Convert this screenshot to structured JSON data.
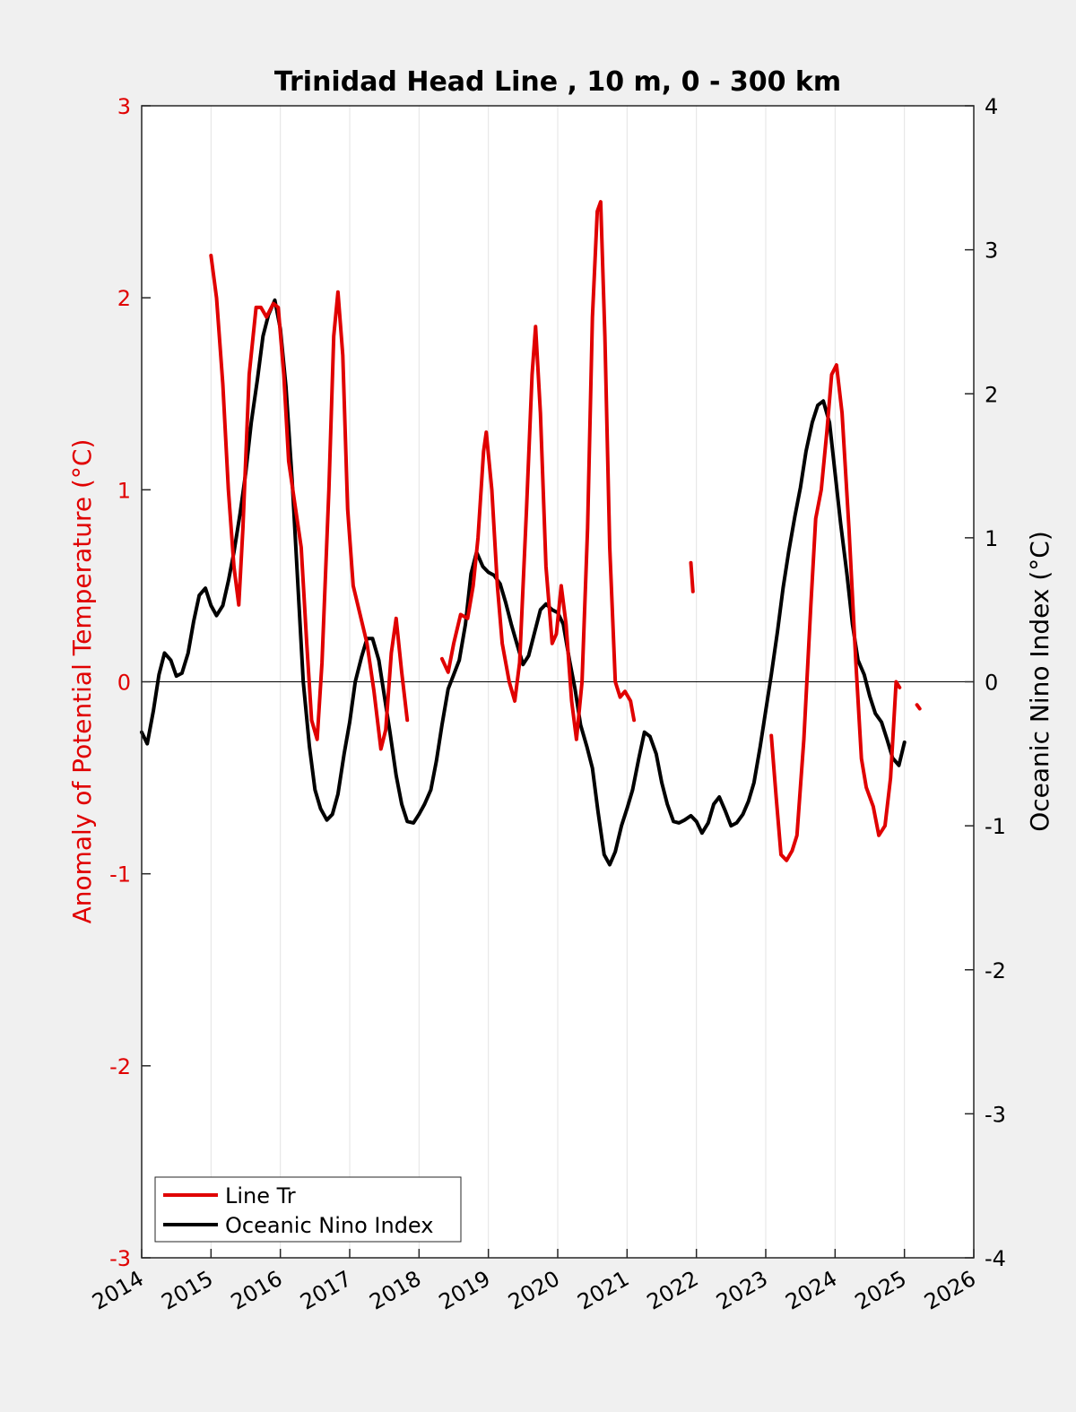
{
  "chart_data": {
    "type": "line",
    "title": "Trinidad Head Line , 10 m, 0 - 300 km",
    "xlabel": "",
    "ylabel_left": "Anomaly of Potential Temperature (°C)",
    "ylabel_right": "Oceanic Nino Index (°C)",
    "xlim": [
      2014,
      2026
    ],
    "ylim_left": [
      -3,
      3
    ],
    "ylim_right": [
      -4,
      4
    ],
    "x_ticks": [
      "2014",
      "2015",
      "2016",
      "2017",
      "2018",
      "2019",
      "2020",
      "2021",
      "2022",
      "2023",
      "2024",
      "2025",
      "2026"
    ],
    "y_ticks_left": [
      "3",
      "2",
      "1",
      "0",
      "-1",
      "-2",
      "-3"
    ],
    "y_ticks_right": [
      "4",
      "3",
      "2",
      "1",
      "0",
      "-1",
      "-2",
      "-3",
      "-4"
    ],
    "grid": "vertical",
    "zero_line": true,
    "legend_position": "bottom-left",
    "colors": {
      "line_tr": "#e00000",
      "oni": "#000000",
      "left_axis": "#e00000"
    },
    "series": [
      {
        "name": "Line Tr",
        "axis": "left",
        "segments": [
          [
            [
              2015.0,
              2.22
            ],
            [
              2015.08,
              2.0
            ],
            [
              2015.17,
              1.55
            ],
            [
              2015.25,
              1.0
            ],
            [
              2015.33,
              0.6
            ],
            [
              2015.4,
              0.4
            ],
            [
              2015.46,
              0.8
            ],
            [
              2015.55,
              1.6
            ],
            [
              2015.65,
              1.95
            ],
            [
              2015.72,
              1.95
            ],
            [
              2015.8,
              1.9
            ],
            [
              2015.9,
              1.97
            ],
            [
              2015.97,
              1.95
            ],
            [
              2016.05,
              1.6
            ],
            [
              2016.12,
              1.15
            ],
            [
              2016.2,
              0.95
            ],
            [
              2016.3,
              0.7
            ],
            [
              2016.38,
              0.2
            ],
            [
              2016.45,
              -0.2
            ],
            [
              2016.53,
              -0.3
            ],
            [
              2016.6,
              0.1
            ],
            [
              2016.7,
              1.0
            ],
            [
              2016.77,
              1.8
            ],
            [
              2016.83,
              2.03
            ],
            [
              2016.9,
              1.7
            ],
            [
              2016.97,
              0.9
            ],
            [
              2017.05,
              0.5
            ],
            [
              2017.15,
              0.35
            ],
            [
              2017.25,
              0.2
            ],
            [
              2017.35,
              -0.05
            ],
            [
              2017.45,
              -0.35
            ],
            [
              2017.52,
              -0.25
            ],
            [
              2017.6,
              0.15
            ],
            [
              2017.67,
              0.33
            ],
            [
              2017.75,
              0.05
            ],
            [
              2017.83,
              -0.2
            ]
          ],
          [
            [
              2018.33,
              0.12
            ],
            [
              2018.42,
              0.05
            ],
            [
              2018.5,
              0.2
            ],
            [
              2018.6,
              0.35
            ],
            [
              2018.7,
              0.33
            ],
            [
              2018.78,
              0.5
            ],
            [
              2018.85,
              0.75
            ],
            [
              2018.93,
              1.2
            ],
            [
              2018.97,
              1.3
            ],
            [
              2019.05,
              1.0
            ],
            [
              2019.13,
              0.5
            ],
            [
              2019.2,
              0.2
            ],
            [
              2019.3,
              0.0
            ],
            [
              2019.38,
              -0.1
            ],
            [
              2019.45,
              0.1
            ],
            [
              2019.55,
              0.9
            ],
            [
              2019.63,
              1.6
            ],
            [
              2019.68,
              1.85
            ],
            [
              2019.75,
              1.4
            ],
            [
              2019.83,
              0.6
            ],
            [
              2019.92,
              0.2
            ],
            [
              2019.98,
              0.25
            ],
            [
              2020.05,
              0.5
            ],
            [
              2020.12,
              0.3
            ],
            [
              2020.2,
              -0.1
            ],
            [
              2020.27,
              -0.3
            ],
            [
              2020.35,
              0.0
            ],
            [
              2020.43,
              0.8
            ],
            [
              2020.5,
              1.9
            ],
            [
              2020.57,
              2.45
            ],
            [
              2020.62,
              2.5
            ],
            [
              2020.68,
              1.8
            ],
            [
              2020.75,
              0.7
            ],
            [
              2020.83,
              0.0
            ],
            [
              2020.9,
              -0.08
            ],
            [
              2020.97,
              -0.05
            ],
            [
              2021.05,
              -0.1
            ],
            [
              2021.1,
              -0.2
            ]
          ],
          [
            [
              2021.92,
              0.62
            ],
            [
              2021.95,
              0.47
            ]
          ],
          [
            [
              2023.08,
              -0.28
            ],
            [
              2023.15,
              -0.6
            ],
            [
              2023.22,
              -0.9
            ],
            [
              2023.3,
              -0.93
            ],
            [
              2023.38,
              -0.88
            ],
            [
              2023.45,
              -0.8
            ],
            [
              2023.55,
              -0.3
            ],
            [
              2023.65,
              0.4
            ],
            [
              2023.72,
              0.85
            ],
            [
              2023.8,
              1.0
            ],
            [
              2023.88,
              1.3
            ],
            [
              2023.95,
              1.6
            ],
            [
              2024.02,
              1.65
            ],
            [
              2024.1,
              1.4
            ],
            [
              2024.2,
              0.8
            ],
            [
              2024.3,
              0.1
            ],
            [
              2024.38,
              -0.4
            ],
            [
              2024.45,
              -0.55
            ],
            [
              2024.55,
              -0.65
            ],
            [
              2024.63,
              -0.8
            ],
            [
              2024.72,
              -0.75
            ],
            [
              2024.8,
              -0.5
            ],
            [
              2024.88,
              0.0
            ],
            [
              2024.93,
              -0.03
            ]
          ],
          [
            [
              2025.18,
              -0.12
            ],
            [
              2025.22,
              -0.14
            ]
          ]
        ]
      },
      {
        "name": "Oceanic Nino Index",
        "axis": "right",
        "points": [
          [
            2014.0,
            -0.35
          ],
          [
            2014.08,
            -0.43
          ],
          [
            2014.17,
            -0.2
          ],
          [
            2014.25,
            0.05
          ],
          [
            2014.33,
            0.2
          ],
          [
            2014.42,
            0.15
          ],
          [
            2014.5,
            0.04
          ],
          [
            2014.58,
            0.06
          ],
          [
            2014.67,
            0.2
          ],
          [
            2014.75,
            0.42
          ],
          [
            2014.83,
            0.6
          ],
          [
            2014.92,
            0.65
          ],
          [
            2015.0,
            0.53
          ],
          [
            2015.08,
            0.46
          ],
          [
            2015.17,
            0.53
          ],
          [
            2015.25,
            0.7
          ],
          [
            2015.33,
            0.9
          ],
          [
            2015.42,
            1.17
          ],
          [
            2015.5,
            1.45
          ],
          [
            2015.58,
            1.8
          ],
          [
            2015.67,
            2.1
          ],
          [
            2015.75,
            2.4
          ],
          [
            2015.83,
            2.55
          ],
          [
            2015.92,
            2.65
          ],
          [
            2016.0,
            2.45
          ],
          [
            2016.08,
            2.05
          ],
          [
            2016.17,
            1.4
          ],
          [
            2016.25,
            0.7
          ],
          [
            2016.33,
            0.0
          ],
          [
            2016.42,
            -0.45
          ],
          [
            2016.5,
            -0.75
          ],
          [
            2016.58,
            -0.88
          ],
          [
            2016.67,
            -0.96
          ],
          [
            2016.75,
            -0.92
          ],
          [
            2016.83,
            -0.78
          ],
          [
            2016.92,
            -0.5
          ],
          [
            2017.0,
            -0.28
          ],
          [
            2017.08,
            0.0
          ],
          [
            2017.17,
            0.17
          ],
          [
            2017.25,
            0.3
          ],
          [
            2017.33,
            0.3
          ],
          [
            2017.42,
            0.15
          ],
          [
            2017.5,
            -0.1
          ],
          [
            2017.58,
            -0.35
          ],
          [
            2017.67,
            -0.65
          ],
          [
            2017.75,
            -0.85
          ],
          [
            2017.83,
            -0.97
          ],
          [
            2017.92,
            -0.98
          ],
          [
            2018.0,
            -0.92
          ],
          [
            2018.08,
            -0.85
          ],
          [
            2018.17,
            -0.75
          ],
          [
            2018.25,
            -0.55
          ],
          [
            2018.33,
            -0.3
          ],
          [
            2018.42,
            -0.05
          ],
          [
            2018.5,
            0.05
          ],
          [
            2018.58,
            0.15
          ],
          [
            2018.67,
            0.4
          ],
          [
            2018.75,
            0.75
          ],
          [
            2018.83,
            0.9
          ],
          [
            2018.92,
            0.8
          ],
          [
            2019.0,
            0.76
          ],
          [
            2019.08,
            0.74
          ],
          [
            2019.17,
            0.68
          ],
          [
            2019.25,
            0.55
          ],
          [
            2019.33,
            0.4
          ],
          [
            2019.42,
            0.25
          ],
          [
            2019.5,
            0.12
          ],
          [
            2019.58,
            0.18
          ],
          [
            2019.67,
            0.35
          ],
          [
            2019.75,
            0.5
          ],
          [
            2019.83,
            0.54
          ],
          [
            2019.92,
            0.5
          ],
          [
            2020.0,
            0.48
          ],
          [
            2020.08,
            0.4
          ],
          [
            2020.17,
            0.15
          ],
          [
            2020.25,
            -0.05
          ],
          [
            2020.33,
            -0.3
          ],
          [
            2020.42,
            -0.45
          ],
          [
            2020.5,
            -0.6
          ],
          [
            2020.58,
            -0.9
          ],
          [
            2020.67,
            -1.2
          ],
          [
            2020.75,
            -1.27
          ],
          [
            2020.83,
            -1.18
          ],
          [
            2020.92,
            -1.0
          ],
          [
            2021.0,
            -0.88
          ],
          [
            2021.08,
            -0.75
          ],
          [
            2021.17,
            -0.53
          ],
          [
            2021.25,
            -0.35
          ],
          [
            2021.33,
            -0.38
          ],
          [
            2021.42,
            -0.5
          ],
          [
            2021.5,
            -0.7
          ],
          [
            2021.58,
            -0.85
          ],
          [
            2021.67,
            -0.97
          ],
          [
            2021.75,
            -0.98
          ],
          [
            2021.83,
            -0.96
          ],
          [
            2021.92,
            -0.93
          ],
          [
            2022.0,
            -0.97
          ],
          [
            2022.08,
            -1.05
          ],
          [
            2022.17,
            -0.98
          ],
          [
            2022.25,
            -0.85
          ],
          [
            2022.33,
            -0.8
          ],
          [
            2022.42,
            -0.9
          ],
          [
            2022.5,
            -1.0
          ],
          [
            2022.58,
            -0.98
          ],
          [
            2022.67,
            -0.92
          ],
          [
            2022.75,
            -0.83
          ],
          [
            2022.83,
            -0.7
          ],
          [
            2022.92,
            -0.45
          ],
          [
            2023.0,
            -0.2
          ],
          [
            2023.08,
            0.05
          ],
          [
            2023.17,
            0.35
          ],
          [
            2023.25,
            0.65
          ],
          [
            2023.33,
            0.9
          ],
          [
            2023.42,
            1.15
          ],
          [
            2023.5,
            1.35
          ],
          [
            2023.58,
            1.6
          ],
          [
            2023.67,
            1.8
          ],
          [
            2023.75,
            1.92
          ],
          [
            2023.83,
            1.95
          ],
          [
            2023.92,
            1.8
          ],
          [
            2024.0,
            1.45
          ],
          [
            2024.08,
            1.1
          ],
          [
            2024.17,
            0.75
          ],
          [
            2024.25,
            0.4
          ],
          [
            2024.33,
            0.15
          ],
          [
            2024.42,
            0.05
          ],
          [
            2024.5,
            -0.1
          ],
          [
            2024.58,
            -0.22
          ],
          [
            2024.67,
            -0.28
          ],
          [
            2024.75,
            -0.4
          ],
          [
            2024.83,
            -0.53
          ],
          [
            2024.92,
            -0.58
          ],
          [
            2025.0,
            -0.42
          ]
        ]
      }
    ]
  }
}
